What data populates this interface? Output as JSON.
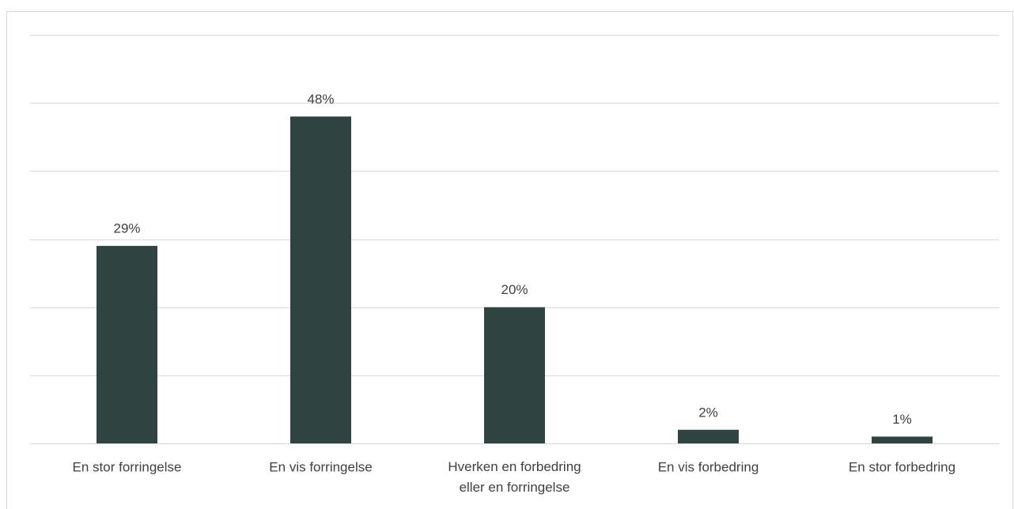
{
  "chart_data": {
    "type": "bar",
    "categories": [
      "En stor forringelse",
      "En vis forringelse",
      "Hverken en forbedring\neller en forringelse",
      "En vis forbedring",
      "En stor forbedring"
    ],
    "values": [
      29,
      48,
      20,
      2,
      1
    ],
    "value_labels": [
      "29%",
      "48%",
      "20%",
      "2%",
      "1%"
    ],
    "color": "#2f4440",
    "ylim": [
      0,
      60
    ],
    "yticks": [
      0,
      10,
      20,
      30,
      40,
      50,
      60
    ],
    "grid": true
  }
}
